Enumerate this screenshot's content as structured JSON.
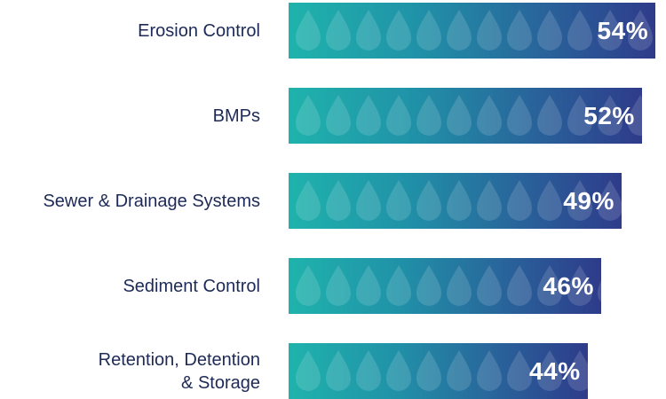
{
  "chart_data": {
    "type": "bar",
    "orientation": "horizontal",
    "categories": [
      "Erosion Control",
      "BMPs",
      "Sewer & Drainage Systems",
      "Sediment Control",
      "Retention, Detention\n& Storage"
    ],
    "values": [
      54,
      52,
      49,
      46,
      44
    ],
    "value_labels": [
      "54%",
      "52%",
      "49%",
      "46%",
      "44%"
    ],
    "color": "#2e3b8a"
  }
}
